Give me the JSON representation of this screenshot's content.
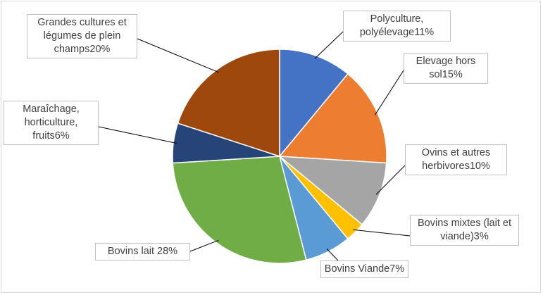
{
  "chart_data": {
    "type": "pie",
    "categories": [
      "Polyculture, polyélevage",
      "Elevage hors sol",
      "Ovins et autres herbivores",
      "Bovins mixtes (lait et viande)",
      "Bovins Viande",
      "Bovins lait ",
      "Maraîchage, horticulture, fruits",
      "Grandes cultures et légumes de plein champs"
    ],
    "values": [
      11,
      15,
      10,
      3,
      7,
      28,
      6,
      20
    ],
    "value_labels": [
      "11%",
      "15%",
      "10%",
      "3%",
      "7%",
      "28%",
      "6%",
      "20%"
    ],
    "colors": [
      "#4472c4",
      "#ed7d31",
      "#a5a5a5",
      "#ffc000",
      "#5b9bd5",
      "#70ad47",
      "#264478",
      "#9e480e"
    ]
  }
}
